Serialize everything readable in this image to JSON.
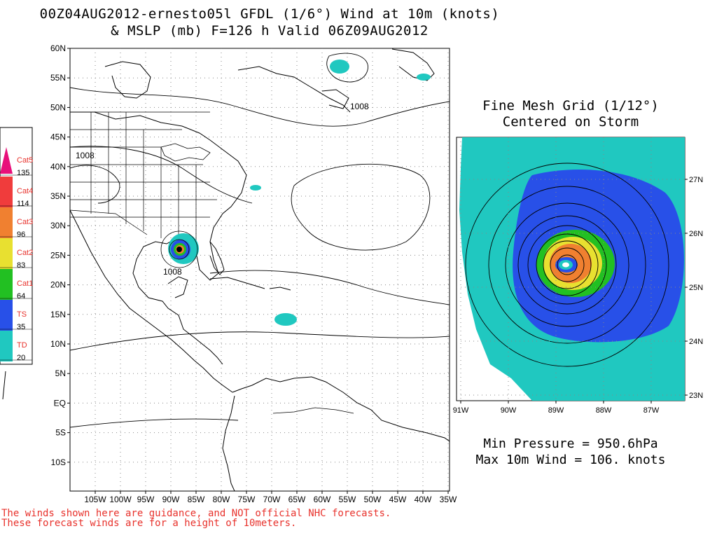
{
  "title": {
    "line1": "00Z04AUG2012-ernesto05l GFDL (1/6°) Wind at 10m (knots)",
    "line2": "& MSLP (mb) F=126 h Valid 06Z09AUG2012"
  },
  "main_map": {
    "lat_labels": [
      "60N",
      "55N",
      "50N",
      "45N",
      "40N",
      "35N",
      "30N",
      "25N",
      "20N",
      "15N",
      "10N",
      "5N",
      "EQ",
      "5S",
      "10S"
    ],
    "lon_labels": [
      "105W",
      "100W",
      "95W",
      "90W",
      "85W",
      "80W",
      "75W",
      "70W",
      "65W",
      "60W",
      "55W",
      "50W",
      "45W",
      "40W",
      "35W"
    ],
    "isobar_labels": [
      "1008",
      "1008",
      "1008"
    ]
  },
  "legend": {
    "categories": [
      {
        "name": "Cat5",
        "color": "#e8107a"
      },
      {
        "name": "Cat4",
        "color": "#f03c3c"
      },
      {
        "name": "Cat3",
        "color": "#f08030"
      },
      {
        "name": "Cat2",
        "color": "#e8e030"
      },
      {
        "name": "Cat1",
        "color": "#22c022"
      },
      {
        "name": "TS",
        "color": "#2850e8"
      },
      {
        "name": "TD",
        "color": "#20c8c0"
      }
    ],
    "thresholds": [
      "135",
      "114",
      "96",
      "83",
      "64",
      "35",
      "20"
    ]
  },
  "fine_mesh": {
    "title_line1": "Fine Mesh Grid (1/12°)",
    "title_line2": "Centered on Storm",
    "lat_labels": [
      "27N",
      "26N",
      "25N",
      "24N",
      "23N"
    ],
    "lon_labels": [
      "91W",
      "90W",
      "89W",
      "88W",
      "87W"
    ]
  },
  "stats": {
    "min_pressure": "Min Pressure = 950.6hPa",
    "max_wind": "Max 10m Wind = 106. knots"
  },
  "disclaimer": {
    "line1": "The winds shown here are guidance, and NOT official NHC forecasts.",
    "line2": "These forecast winds are for a height of 10meters."
  },
  "colors": {
    "td": "#20c8c0",
    "ts": "#2850e8",
    "cat1": "#22c022",
    "cat2": "#e8e030",
    "cat3": "#f08030",
    "text_red": "#e8322c"
  }
}
